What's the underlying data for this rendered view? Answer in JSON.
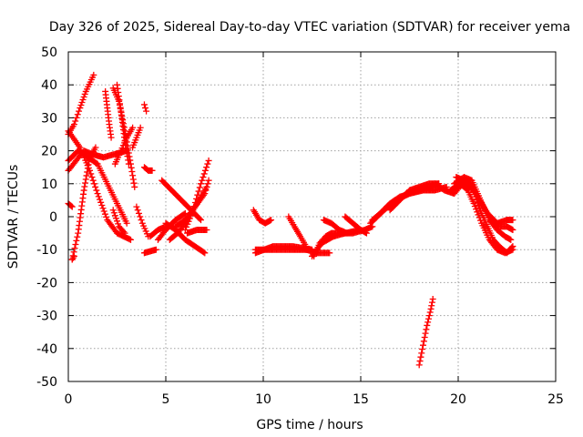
{
  "chart_data": {
    "type": "scatter",
    "title": "Day 326 of 2025, Sidereal Day-to-day VTEC variation (SDTVAR) for receiver yema",
    "xlabel": "GPS time / hours",
    "ylabel": "SDTVAR / TECUs",
    "xlim": [
      0,
      25
    ],
    "ylim": [
      -50,
      50
    ],
    "x_ticks": [
      0,
      5,
      10,
      15,
      20,
      25
    ],
    "y_ticks": [
      -50,
      -40,
      -30,
      -20,
      -10,
      0,
      10,
      20,
      30,
      40,
      50
    ],
    "x_tick_labels": [
      "0",
      "5",
      "10",
      "15",
      "20",
      "25"
    ],
    "y_tick_labels": [
      "-50",
      "-40",
      "-30",
      "-20",
      "-10",
      "0",
      "10",
      "20",
      "30",
      "40",
      "50"
    ],
    "grid": true,
    "marker": "+",
    "color": "#ff0000",
    "tracks": [
      [
        [
          0.0,
          25
        ],
        [
          0.3,
          28
        ],
        [
          0.6,
          33
        ],
        [
          0.9,
          38
        ],
        [
          1.3,
          43
        ]
      ],
      [
        [
          0.0,
          14
        ],
        [
          0.4,
          17
        ],
        [
          0.8,
          20
        ],
        [
          1.2,
          19
        ],
        [
          1.8,
          18
        ],
        [
          2.4,
          19
        ],
        [
          3.0,
          20
        ]
      ],
      [
        [
          0.0,
          26
        ],
        [
          0.6,
          21
        ],
        [
          1.1,
          14
        ],
        [
          1.5,
          7
        ],
        [
          2.0,
          -1
        ],
        [
          2.5,
          -5
        ],
        [
          3.2,
          -7
        ]
      ],
      [
        [
          0.2,
          -13
        ],
        [
          0.5,
          -5
        ],
        [
          0.8,
          8
        ],
        [
          1.1,
          18
        ],
        [
          1.4,
          21
        ]
      ],
      [
        [
          0.0,
          17
        ],
        [
          0.5,
          20
        ],
        [
          1.0,
          18
        ],
        [
          1.5,
          16
        ],
        [
          2.0,
          10
        ],
        [
          2.5,
          4
        ],
        [
          3.0,
          -2
        ]
      ],
      [
        [
          0.0,
          4
        ],
        [
          0.2,
          3
        ]
      ],
      [
        [
          0.2,
          -13
        ],
        [
          0.3,
          -12
        ]
      ],
      [
        [
          1.9,
          38
        ],
        [
          2.0,
          33
        ],
        [
          2.1,
          28
        ],
        [
          2.2,
          24
        ]
      ],
      [
        [
          2.3,
          39
        ],
        [
          2.6,
          35
        ],
        [
          2.9,
          26
        ],
        [
          3.2,
          16
        ],
        [
          3.4,
          9
        ]
      ],
      [
        [
          2.5,
          40
        ],
        [
          2.7,
          32
        ],
        [
          2.9,
          23
        ],
        [
          3.1,
          16
        ]
      ],
      [
        [
          2.4,
          16
        ],
        [
          2.7,
          20
        ],
        [
          3.0,
          24
        ],
        [
          3.3,
          27
        ]
      ],
      [
        [
          2.3,
          2
        ],
        [
          2.6,
          -3
        ],
        [
          2.9,
          -5
        ]
      ],
      [
        [
          3.5,
          3
        ],
        [
          3.8,
          -2
        ],
        [
          4.1,
          -6
        ]
      ],
      [
        [
          3.3,
          21
        ],
        [
          3.5,
          24
        ],
        [
          3.7,
          27
        ]
      ],
      [
        [
          3.9,
          34
        ],
        [
          4.0,
          32
        ]
      ],
      [
        [
          3.9,
          15
        ],
        [
          4.1,
          14
        ],
        [
          4.3,
          14
        ]
      ],
      [
        [
          4.2,
          -6
        ],
        [
          4.6,
          -4
        ],
        [
          5.0,
          -3
        ]
      ],
      [
        [
          4.6,
          -7
        ],
        [
          5.0,
          -4
        ],
        [
          5.5,
          -1
        ],
        [
          6.0,
          1
        ]
      ],
      [
        [
          4.8,
          11
        ],
        [
          5.3,
          8
        ],
        [
          5.8,
          5
        ],
        [
          6.3,
          2
        ],
        [
          6.8,
          -1
        ]
      ],
      [
        [
          5.0,
          -2
        ],
        [
          5.5,
          -4
        ],
        [
          6.0,
          -7
        ],
        [
          6.5,
          -9
        ],
        [
          7.0,
          -11
        ]
      ],
      [
        [
          5.2,
          -7
        ],
        [
          5.6,
          -5
        ],
        [
          6.0,
          -2
        ],
        [
          6.4,
          2
        ],
        [
          6.8,
          6
        ],
        [
          7.1,
          9
        ]
      ],
      [
        [
          5.5,
          -3
        ],
        [
          6.0,
          -1
        ],
        [
          6.5,
          3
        ],
        [
          7.0,
          7
        ],
        [
          7.2,
          11
        ]
      ],
      [
        [
          6.0,
          -4
        ],
        [
          6.4,
          2
        ],
        [
          6.8,
          10
        ],
        [
          7.2,
          17
        ]
      ],
      [
        [
          6.1,
          -5
        ],
        [
          6.6,
          -4
        ],
        [
          7.1,
          -4
        ]
      ],
      [
        [
          3.9,
          -11
        ],
        [
          4.5,
          -10
        ]
      ],
      [
        [
          9.5,
          2
        ],
        [
          9.8,
          -1
        ],
        [
          10.1,
          -2
        ],
        [
          10.4,
          -1
        ]
      ],
      [
        [
          9.6,
          -10
        ],
        [
          10.5,
          -10
        ],
        [
          11.5,
          -10
        ],
        [
          12.4,
          -10
        ]
      ],
      [
        [
          9.6,
          -11
        ],
        [
          10.5,
          -9
        ],
        [
          11.5,
          -9
        ],
        [
          12.5,
          -10
        ]
      ],
      [
        [
          11.3,
          0
        ],
        [
          11.6,
          -3
        ],
        [
          11.9,
          -6
        ],
        [
          12.2,
          -9
        ]
      ],
      [
        [
          12.2,
          -10
        ],
        [
          12.8,
          -11
        ],
        [
          13.4,
          -11
        ]
      ],
      [
        [
          12.6,
          -12
        ],
        [
          12.9,
          -8
        ],
        [
          13.2,
          -6
        ],
        [
          13.5,
          -5
        ],
        [
          14.0,
          -5
        ],
        [
          14.6,
          -5
        ],
        [
          15.2,
          -4
        ],
        [
          15.6,
          -3
        ]
      ],
      [
        [
          12.5,
          -12
        ],
        [
          13.0,
          -8
        ],
        [
          13.6,
          -6
        ],
        [
          14.2,
          -5
        ],
        [
          15.0,
          -4
        ]
      ],
      [
        [
          13.1,
          -1
        ],
        [
          13.5,
          -2
        ],
        [
          13.9,
          -4
        ],
        [
          14.3,
          -5
        ]
      ],
      [
        [
          14.2,
          0
        ],
        [
          14.6,
          -2
        ],
        [
          15.0,
          -4
        ],
        [
          15.3,
          -5
        ]
      ],
      [
        [
          15.6,
          -1
        ],
        [
          16.0,
          1
        ],
        [
          16.5,
          4
        ],
        [
          17.0,
          6
        ],
        [
          17.5,
          7
        ],
        [
          18.0,
          8
        ],
        [
          18.5,
          9
        ],
        [
          19.0,
          10
        ]
      ],
      [
        [
          15.5,
          -2
        ],
        [
          16.2,
          2
        ],
        [
          16.8,
          5
        ],
        [
          17.5,
          7
        ],
        [
          18.2,
          8
        ],
        [
          18.8,
          8
        ],
        [
          19.4,
          9
        ]
      ],
      [
        [
          16.5,
          2
        ],
        [
          17.0,
          5
        ],
        [
          17.5,
          8
        ],
        [
          18.0,
          9
        ],
        [
          18.5,
          10
        ],
        [
          19.0,
          10
        ]
      ],
      [
        [
          18.0,
          -45
        ],
        [
          18.2,
          -39
        ],
        [
          18.4,
          -33
        ],
        [
          18.6,
          -28
        ],
        [
          18.7,
          -25
        ]
      ],
      [
        [
          18.8,
          10
        ],
        [
          19.3,
          8
        ],
        [
          19.8,
          7
        ],
        [
          20.2,
          10
        ],
        [
          20.6,
          10
        ],
        [
          20.9,
          6
        ],
        [
          21.2,
          1
        ],
        [
          21.5,
          -3
        ],
        [
          21.8,
          -7
        ],
        [
          22.1,
          -9
        ],
        [
          22.5,
          -11
        ],
        [
          22.8,
          -9
        ]
      ],
      [
        [
          19.8,
          10
        ],
        [
          20.3,
          12
        ],
        [
          20.7,
          11
        ],
        [
          21.0,
          7
        ],
        [
          21.3,
          3
        ],
        [
          21.6,
          -1
        ],
        [
          22.0,
          -4
        ],
        [
          22.4,
          -6
        ],
        [
          22.7,
          -7
        ]
      ],
      [
        [
          19.6,
          8
        ],
        [
          20.1,
          10
        ],
        [
          20.5,
          8
        ],
        [
          20.8,
          4
        ],
        [
          21.2,
          -2
        ],
        [
          21.6,
          -7
        ],
        [
          22.0,
          -10
        ],
        [
          22.4,
          -11
        ],
        [
          22.8,
          -10
        ]
      ],
      [
        [
          19.9,
          12
        ],
        [
          20.3,
          11
        ],
        [
          20.7,
          9
        ],
        [
          21.1,
          5
        ],
        [
          21.5,
          1
        ],
        [
          22.0,
          -2
        ],
        [
          22.5,
          -1
        ],
        [
          22.8,
          -1
        ]
      ],
      [
        [
          20.0,
          9
        ],
        [
          20.4,
          10
        ],
        [
          20.8,
          8
        ],
        [
          21.2,
          4
        ],
        [
          21.6,
          0
        ],
        [
          22.0,
          -3
        ],
        [
          22.5,
          -3
        ],
        [
          22.8,
          -4
        ]
      ]
    ]
  }
}
